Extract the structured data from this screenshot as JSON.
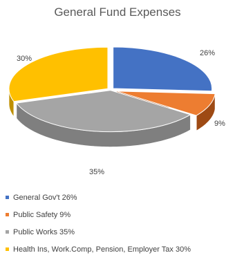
{
  "chart_data": {
    "type": "pie",
    "title": "General Fund Expenses",
    "legend_position": "bottom",
    "three_d": true,
    "slices": [
      {
        "legend": "General Gov't 26%",
        "label": "26%",
        "value": 26,
        "color": "#4472C4",
        "side_color": "#2F5597"
      },
      {
        "legend": "Public Safety 9%",
        "label": "9%",
        "value": 9,
        "color": "#ED7D31",
        "side_color": "#9E4A14"
      },
      {
        "legend": "Public Works 35%",
        "label": "35%",
        "value": 35,
        "color": "#A5A5A5",
        "side_color": "#7F7F7F"
      },
      {
        "legend": "Health Ins, Work.Comp, Pension, Employer Tax 30%",
        "label": "30%",
        "value": 30,
        "color": "#FFC000",
        "side_color": "#BF9000"
      }
    ]
  }
}
